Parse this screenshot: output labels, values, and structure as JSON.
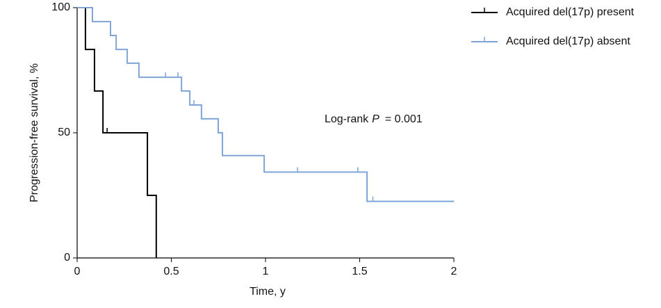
{
  "chart_data": {
    "type": "step",
    "xlabel": "Time, y",
    "ylabel": "Progression-free survival, %",
    "annotation": {
      "prefix": "Log-rank",
      "italic": "P",
      "suffix": "= 0.001"
    },
    "xlim": [
      0,
      2
    ],
    "xticks": [
      0,
      0.5,
      1,
      1.5,
      2
    ],
    "ylim": [
      0,
      100
    ],
    "yticks": [
      0,
      50,
      100
    ],
    "legend": "top-right",
    "series": [
      {
        "name": "Acquired del(17p) present",
        "color": "#000000",
        "x": [
          0,
          0.044,
          0.092,
          0.137,
          0.373,
          0.42
        ],
        "values": [
          100,
          83.3,
          66.7,
          50,
          25,
          0
        ],
        "censored_x": [
          0.159
        ],
        "censored_values": [
          50
        ]
      },
      {
        "name": "Acquired del(17p) absent",
        "color": "#7fa5d8",
        "x": [
          0,
          0.081,
          0.177,
          0.207,
          0.266,
          0.328,
          0.554,
          0.598,
          0.66,
          0.749,
          0.771,
          0.993,
          1.539,
          2
        ],
        "values": [
          100,
          94.4,
          88.9,
          83.3,
          77.8,
          72.2,
          66.7,
          61.1,
          55.6,
          50,
          40.9,
          34.3,
          22.6,
          22.6
        ],
        "censored_x": [
          0.081,
          0.469,
          0.535,
          0.62,
          1.17,
          1.49,
          1.57
        ],
        "censored_values": [
          94.4,
          72.2,
          72.2,
          61.1,
          34.3,
          34.3,
          22.6
        ]
      }
    ]
  }
}
